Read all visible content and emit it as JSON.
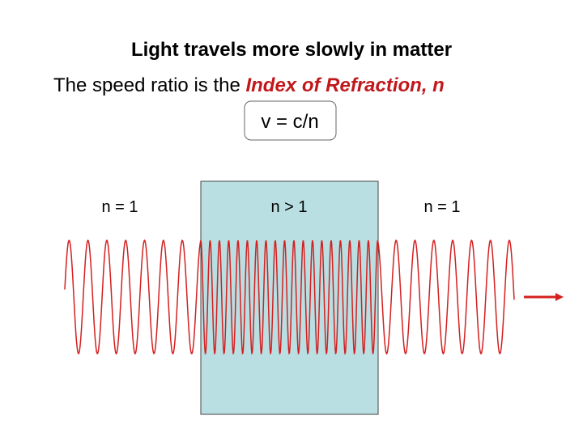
{
  "title": "Light travels more slowly in matter",
  "subtitle": {
    "text": "The speed ratio is the ",
    "emphasis": "Index of Refraction, n"
  },
  "formula": "v = c/n",
  "regions": [
    {
      "label": "n = 1"
    },
    {
      "label": "n > 1"
    },
    {
      "label": "n = 1"
    }
  ]
}
